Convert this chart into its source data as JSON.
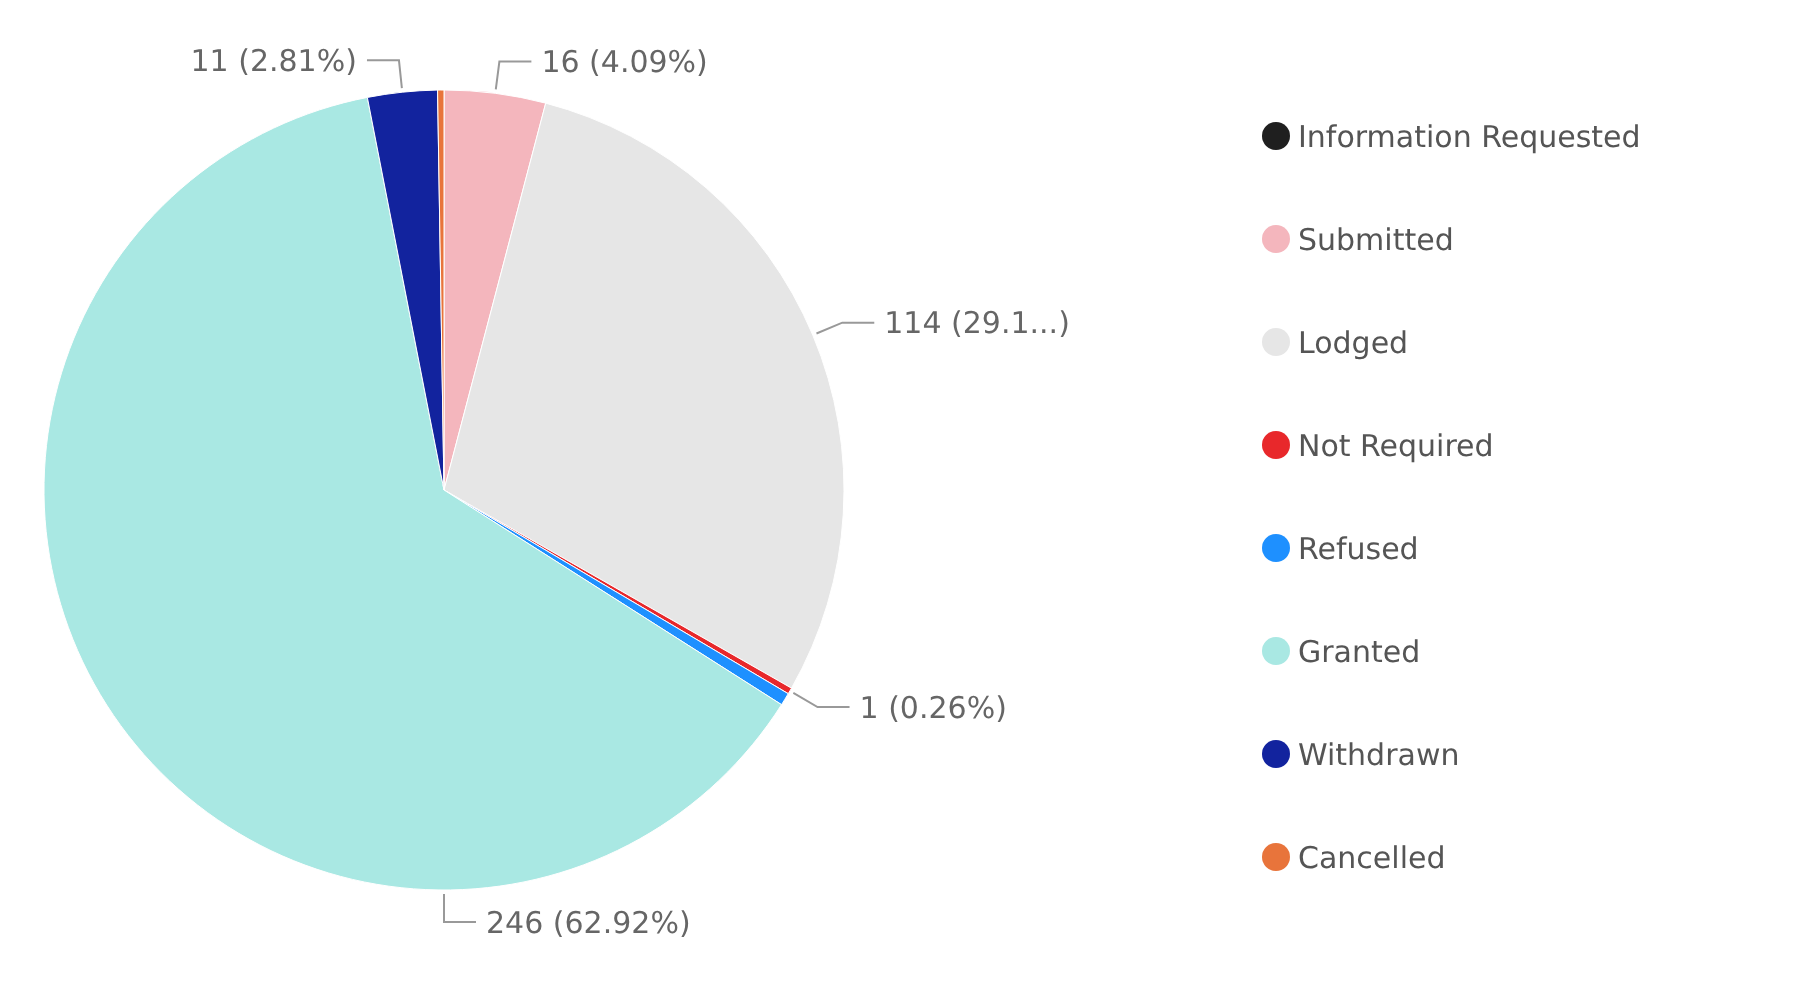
{
  "chart_data": {
    "type": "pie",
    "categories": [
      "Information Requested",
      "Submitted",
      "Lodged",
      "Not Required",
      "Refused",
      "Granted",
      "Withdrawn",
      "Cancelled"
    ],
    "values": [
      0,
      16,
      114,
      1,
      2,
      246,
      11,
      1
    ],
    "colors": [
      "#1f1f1f",
      "#f4b6bd",
      "#e6e6e6",
      "#e8282b",
      "#1e90ff",
      "#a9e8e3",
      "#12239e",
      "#e8743b"
    ],
    "value_labels": [
      null,
      "16 (4.09%)",
      "114 (29.1...)",
      "1 (0.26%)",
      null,
      "246 (62.92%)",
      "11 (2.81%)",
      null
    ],
    "legend": "right"
  }
}
